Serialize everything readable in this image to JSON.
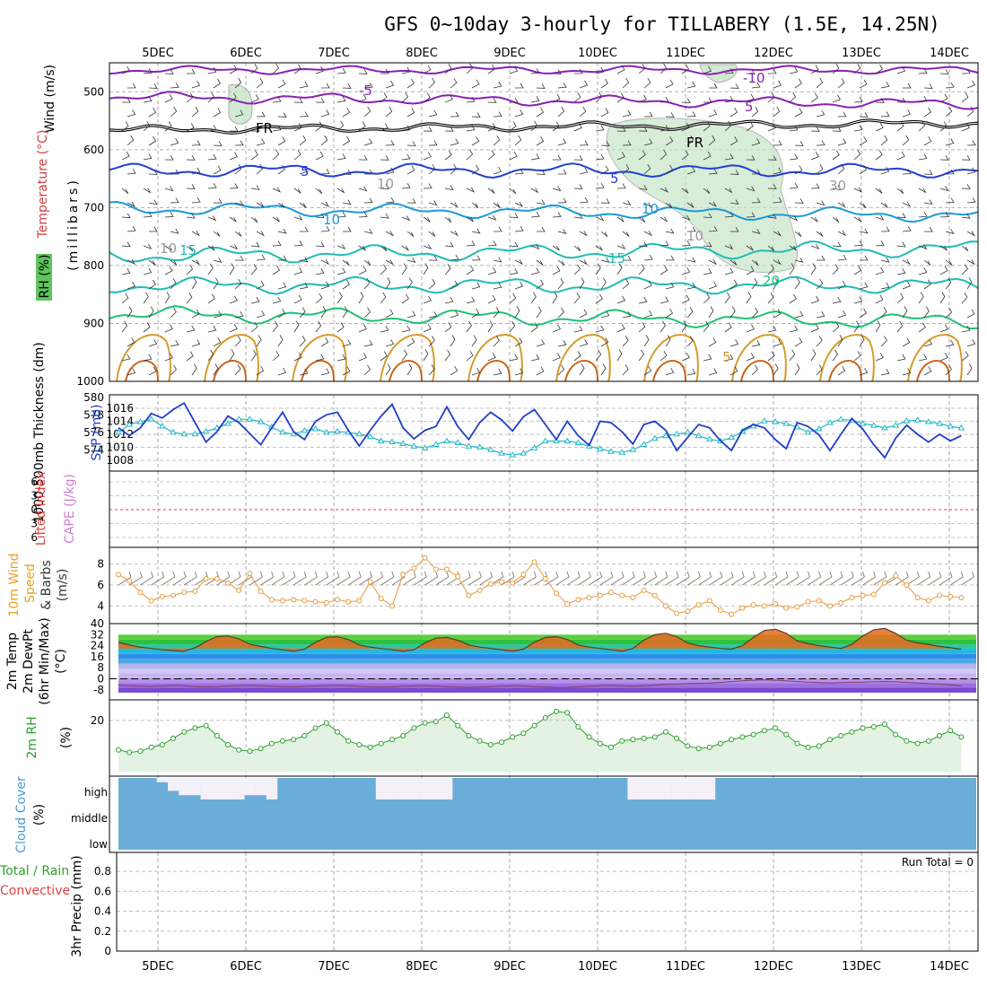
{
  "title": "GFS 0~10day 3-hourly for TILLABERY (1.5E, 14.25N)",
  "run_total": "Run Total = 0",
  "colors": {
    "temp_purple": "#8a1fb5",
    "temp_black": "#000000",
    "temp_blue": "#1f3fd6",
    "temp_lightblue": "#1a9ad8",
    "temp_cyan": "#1fbcb4",
    "temp_green": "#1fc07a",
    "temp_orange": "#d89a2a",
    "temp_darkorange": "#c8641a",
    "slp": "#1f3fc8",
    "thickness": "#22b8c8",
    "wind10m": "#e89a3a",
    "rh2m": "#2aa02a",
    "cloud": "#6aaed8",
    "cape": "#d080d0",
    "lifted": "#e04040"
  },
  "chart_data": [
    {
      "id": "upper",
      "type": "line",
      "x": [
        "5DEC",
        "6DEC",
        "7DEC",
        "8DEC",
        "9DEC",
        "10DEC",
        "11DEC",
        "12DEC",
        "13DEC",
        "14DEC"
      ],
      "ylabel_wind": "Wind (m/s)",
      "ylabel_temp": "Temperature (°C)",
      "ylabel_rh": "RH (%)",
      "ylabel_axis": "(millibars)",
      "yticks": [
        500,
        600,
        700,
        800,
        900,
        1000
      ],
      "ylim": [
        1000,
        450
      ],
      "contour_labels": [
        "-10",
        "-5",
        "FR",
        "FR",
        "5",
        "5",
        "5",
        "10",
        "10",
        "15",
        "15",
        "20",
        "5",
        "10",
        "10",
        "30",
        "10"
      ]
    },
    {
      "id": "thickness-slp",
      "type": "line",
      "ylabel_thickness": "1000-500mb Thickness (dm)",
      "ylabel_slp": "SLP (mb)",
      "yticks_thickness": [
        574,
        576,
        578,
        580
      ],
      "yticks_slp": [
        1008,
        1010,
        1012,
        1014,
        1016
      ],
      "series": [
        {
          "name": "SLP",
          "values": [
            1013.0,
            1011.8,
            1013.0,
            1015.2,
            1014.5,
            1015.8,
            1016.8,
            1013.8,
            1010.8,
            1012.4,
            1014.8,
            1013.8,
            1012.1,
            1010.4,
            1013.0,
            1015.4,
            1012.4,
            1011.2,
            1014.0,
            1015.0,
            1015.4,
            1012.6,
            1010.2,
            1012.6,
            1014.8,
            1016.6,
            1013.0,
            1011.3,
            1012.6,
            1013.2,
            1016.2,
            1013.2,
            1011.2,
            1013.8,
            1015.4,
            1014.2,
            1012.5,
            1014.7,
            1015.8,
            1013.5,
            1011.2,
            1014.0,
            1011.8,
            1010.3,
            1014.0,
            1013.8,
            1012.4,
            1010.5,
            1013.5,
            1014.0,
            1012.6,
            1009.5,
            1011.5,
            1013.5,
            1013.0,
            1011.0,
            1009.5,
            1012.6,
            1013.5,
            1013.0,
            1011.2,
            1009.8,
            1013.8,
            1013.2,
            1011.9,
            1009.5,
            1012.0,
            1014.4,
            1012.8,
            1010.4,
            1008.4,
            1011.4,
            1013.4,
            1012.0,
            1010.8,
            1012.0,
            1011.0,
            1011.8
          ]
        },
        {
          "name": "Thickness",
          "values": [
            576.0,
            576.9,
            577.2,
            577.5,
            576.7,
            576.0,
            575.8,
            575.8,
            576.1,
            576.5,
            577.0,
            577.5,
            577.5,
            577.2,
            576.6,
            576.0,
            575.8,
            576.2,
            576.4,
            576.0,
            576.1,
            576.0,
            575.8,
            575.5,
            575.0,
            574.9,
            574.7,
            574.4,
            574.2,
            574.6,
            575.0,
            574.8,
            574.4,
            574.3,
            574.0,
            573.6,
            573.4,
            573.6,
            574.2,
            575.0,
            575.0,
            575.0,
            574.8,
            574.4,
            574.1,
            573.8,
            573.7,
            574.0,
            574.6,
            575.3,
            575.6,
            575.8,
            576.0,
            575.6,
            575.2,
            575.0,
            575.4,
            576.1,
            576.7,
            577.3,
            577.2,
            577.0,
            576.6,
            576.0,
            576.4,
            577.1,
            577.5,
            577.4,
            577.0,
            576.8,
            576.5,
            576.8,
            577.3,
            577.4,
            577.2,
            577.0,
            576.7,
            576.5
          ]
        }
      ]
    },
    {
      "id": "cape-li",
      "type": "line",
      "ylabel_li": "Lifted Index",
      "ylabel_cape": "CAPE (J/kg)",
      "yticks": [
        "6",
        "3",
        "0",
        "3",
        "6"
      ]
    },
    {
      "id": "wind10m",
      "type": "line",
      "ylabel": "10m Wind Speed & Barbs (m/s)",
      "ylabel_parts": [
        "10m Wind",
        "Speed",
        "& Barbs",
        "(m/s)"
      ],
      "yticks": [
        4,
        6,
        8
      ],
      "series": [
        {
          "name": "Speed",
          "values": [
            7.0,
            6.4,
            5.3,
            4.5,
            4.9,
            5.0,
            5.3,
            5.4,
            6.6,
            6.6,
            6.2,
            5.5,
            7.1,
            5.4,
            4.6,
            4.5,
            4.6,
            4.5,
            4.4,
            4.3,
            4.6,
            4.4,
            4.5,
            6.3,
            4.7,
            4.0,
            7.0,
            7.6,
            8.6,
            7.5,
            7.5,
            6.8,
            5.0,
            5.5,
            6.1,
            6.3,
            6.2,
            7.0,
            8.2,
            6.6,
            5.2,
            4.2,
            4.6,
            4.8,
            5.0,
            5.3,
            5.0,
            4.8,
            5.5,
            5.0,
            4.0,
            3.3,
            3.5,
            4.1,
            4.5,
            3.6,
            3.2,
            3.8,
            4.1,
            4.0,
            4.2,
            3.8,
            3.9,
            4.4,
            4.5,
            4.0,
            4.3,
            4.8,
            5.0,
            5.1,
            6.2,
            6.9,
            6.0,
            4.8,
            4.5,
            5.0,
            4.9,
            4.8
          ]
        }
      ]
    },
    {
      "id": "temp2m",
      "type": "area",
      "ylabel": "2m Temp 2m DewPt (6hr Min/Max) (°C)",
      "ylabel_parts": [
        "2m Temp",
        "2m DewPt",
        "(6hr Min/Max)",
        "(°C)"
      ],
      "yticks": [
        -8,
        0,
        8,
        16,
        24,
        32,
        40
      ],
      "series": [
        {
          "name": "Temp",
          "values": [
            26.5,
            24.5,
            23.0,
            22.0,
            21.0,
            20.5,
            20.0,
            22.5,
            27.0,
            30.5,
            31.0,
            29.0,
            25.0,
            23.5,
            22.0,
            21.0,
            20.0,
            21.5,
            26.5,
            30.0,
            30.5,
            28.5,
            24.5,
            23.0,
            22.0,
            21.0,
            20.0,
            21.0,
            26.0,
            29.5,
            30.0,
            28.0,
            24.5,
            23.0,
            22.0,
            21.0,
            20.0,
            21.5,
            26.5,
            30.0,
            30.5,
            28.5,
            24.5,
            23.0,
            22.0,
            21.0,
            20.0,
            22.0,
            28.0,
            32.0,
            33.0,
            30.5,
            26.0,
            24.0,
            23.0,
            22.0,
            21.5,
            24.0,
            30.0,
            35.0,
            36.0,
            33.0,
            27.5,
            25.5,
            24.0,
            23.0,
            22.0,
            25.0,
            31.0,
            35.5,
            36.5,
            33.0,
            28.0,
            26.0,
            25.0,
            23.5,
            22.5,
            21.5
          ]
        },
        {
          "name": "DewPt",
          "values": [
            -4.5,
            -5.0,
            -5.3,
            -5.5,
            -5.2,
            -4.8,
            -5.0,
            -5.5,
            -5.8,
            -5.6,
            -5.2,
            -5.0,
            -4.8,
            -5.0,
            -5.3,
            -5.6,
            -5.8,
            -5.5,
            -5.2,
            -5.0,
            -4.8,
            -5.0,
            -5.5,
            -5.8,
            -6.0,
            -5.8,
            -5.4,
            -5.2,
            -5.0,
            -5.2,
            -5.6,
            -6.0,
            -6.2,
            -6.0,
            -5.6,
            -5.3,
            -5.0,
            -5.2,
            -5.6,
            -6.0,
            -6.3,
            -6.2,
            -5.8,
            -5.4,
            -5.0,
            -4.8,
            -5.0,
            -5.3,
            -5.0,
            -4.5,
            -4.0,
            -3.6,
            -3.4,
            -3.2,
            -3.0,
            -2.6,
            -2.0,
            -1.4,
            -1.0,
            -0.8,
            -1.0,
            -1.4,
            -2.0,
            -2.4,
            -2.8,
            -3.0,
            -2.8,
            -2.6,
            -2.4,
            -2.2,
            -2.0,
            -2.2,
            -2.6,
            -3.0,
            -3.4,
            -3.8,
            -4.4,
            -5.0
          ]
        }
      ]
    },
    {
      "id": "rh2m",
      "type": "area",
      "ylabel": "2m RH",
      "ylabel_unit": "(%)",
      "yticks": [
        20
      ],
      "series": [
        {
          "name": "RH",
          "values": [
            8.5,
            7.5,
            8.0,
            9.5,
            10.5,
            13.0,
            15.5,
            17.0,
            18.0,
            14.0,
            10.5,
            8.5,
            8.0,
            9.0,
            11.0,
            12.0,
            12.5,
            14.0,
            17.0,
            19.0,
            15.5,
            12.0,
            10.5,
            9.5,
            11.0,
            12.5,
            14.0,
            17.0,
            19.0,
            19.5,
            22.0,
            18.0,
            14.0,
            12.0,
            10.5,
            11.5,
            13.5,
            15.0,
            18.0,
            21.0,
            23.5,
            23.0,
            17.5,
            13.5,
            11.0,
            9.5,
            12.0,
            12.5,
            13.0,
            13.5,
            15.5,
            13.0,
            10.0,
            9.0,
            9.5,
            11.0,
            12.5,
            13.5,
            14.5,
            16.0,
            17.0,
            14.5,
            11.0,
            9.5,
            10.0,
            12.5,
            14.0,
            15.5,
            17.0,
            17.5,
            18.5,
            14.5,
            12.0,
            11.0,
            12.0,
            14.0,
            16.0,
            13.5
          ]
        }
      ]
    },
    {
      "id": "cloud",
      "type": "bar",
      "ylabel": "Cloud Cover (%)",
      "ylabel_parts": [
        "Cloud Cover",
        "(%)"
      ],
      "levels": [
        "high",
        "middle",
        "low"
      ],
      "series": [
        {
          "name": "high",
          "values": [
            100,
            100,
            100,
            100,
            80,
            40,
            20,
            20,
            0,
            0,
            0,
            0,
            20,
            20,
            0,
            100,
            100,
            100,
            100,
            100,
            100,
            100,
            100,
            100,
            0,
            0,
            0,
            0,
            0,
            0,
            0,
            100,
            100,
            100,
            100,
            100,
            100,
            100,
            100,
            100,
            100,
            100,
            100,
            100,
            100,
            100,
            100,
            0,
            0,
            0,
            0,
            0,
            0,
            0,
            0,
            100,
            100,
            100,
            100,
            100,
            100,
            100,
            100,
            100,
            100,
            100,
            100,
            100,
            100,
            100,
            100,
            100,
            100,
            100,
            100,
            100,
            100,
            100
          ]
        }
      ]
    },
    {
      "id": "precip",
      "type": "bar",
      "ylabel": "3hr Precip (mm)",
      "ylabel_total": "Total / Rain",
      "ylabel_conv": "Convective",
      "yticks": [
        0,
        0.2,
        0.4,
        0.6,
        0.8
      ],
      "ylim": [
        0,
        1
      ]
    }
  ]
}
